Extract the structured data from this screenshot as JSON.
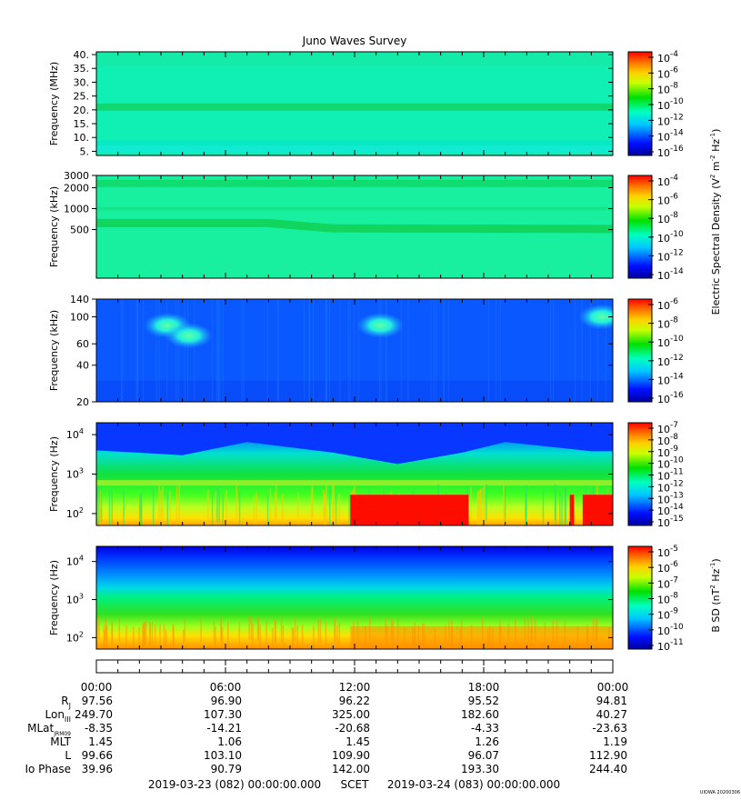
{
  "chart_data": {
    "type": "heatmap",
    "title": "Juno Waves Survey",
    "panels": [
      {
        "ylabel": "Frequency (MHz)",
        "y_ticks": [
          "40.",
          "35.",
          "30.",
          "25.",
          "20.",
          "15.",
          "10.",
          "5."
        ],
        "y_tick_values": [
          40,
          35,
          30,
          25,
          20,
          15,
          10,
          5
        ],
        "ylim": [
          3.5,
          41
        ],
        "scale": "linear",
        "colorbar_ticks": [
          "10",
          "10",
          "10",
          "10",
          "10",
          "10",
          "10"
        ],
        "colorbar_exponents": [
          "-4",
          "-6",
          "-8",
          "-10",
          "-12",
          "-14",
          "-16"
        ]
      },
      {
        "ylabel": "Frequency (kHz)",
        "y_ticks": [
          "3000",
          "2000",
          "1000",
          "500"
        ],
        "y_tick_values": [
          3000,
          2000,
          1000,
          500
        ],
        "ylim": [
          100,
          3000
        ],
        "scale": "log",
        "colorbar_ticks": [
          "10",
          "10",
          "10",
          "10",
          "10",
          "10"
        ],
        "colorbar_exponents": [
          "-4",
          "-6",
          "-8",
          "-10",
          "-12",
          "-14"
        ]
      },
      {
        "ylabel": "Frequency (kHz)",
        "y_ticks": [
          "140",
          "100",
          "60",
          "40",
          "20"
        ],
        "y_tick_values": [
          140,
          100,
          60,
          40,
          20
        ],
        "ylim": [
          20,
          140
        ],
        "scale": "log",
        "colorbar_ticks": [
          "10",
          "10",
          "10",
          "10",
          "10",
          "10"
        ],
        "colorbar_exponents": [
          "-6",
          "-8",
          "-10",
          "-12",
          "-14",
          "-16"
        ]
      },
      {
        "ylabel": "Frequency (Hz)",
        "y_ticks": [
          "10",
          "10",
          "10"
        ],
        "y_tick_exponents": [
          "4",
          "3",
          "2"
        ],
        "y_tick_values": [
          10000,
          1000,
          100
        ],
        "ylim": [
          50,
          20000
        ],
        "scale": "log",
        "colorbar_ticks": [
          "10",
          "10",
          "10",
          "10",
          "10",
          "10",
          "10",
          "10",
          "10"
        ],
        "colorbar_exponents": [
          "-7",
          "-8",
          "-9",
          "-10",
          "-11",
          "-12",
          "-13",
          "-14",
          "-15"
        ]
      },
      {
        "ylabel": "Frequency (Hz)",
        "y_ticks": [
          "10",
          "10",
          "10"
        ],
        "y_tick_exponents": [
          "4",
          "3",
          "2"
        ],
        "y_tick_values": [
          10000,
          1000,
          100
        ],
        "ylim": [
          50,
          25000
        ],
        "scale": "log",
        "colorbar_ticks": [
          "10",
          "10",
          "10",
          "10",
          "10",
          "10",
          "10"
        ],
        "colorbar_exponents": [
          "-5",
          "-6",
          "-7",
          "-8",
          "-9",
          "-10",
          "-11"
        ]
      }
    ],
    "colorbar_labels": {
      "electric": "Electric Spectral Density (V",
      "electric_tail_1": " m",
      "electric_tail_2": " Hz",
      "electric_close": ")",
      "magnetic": "B SD (nT",
      "magnetic_tail": " Hz",
      "magnetic_close": ")",
      "exp_2": "2",
      "exp_m2": "-2",
      "exp_m1": "-1"
    },
    "x_ticks": [
      "00:00",
      "06:00",
      "12:00",
      "18:00",
      "00:00"
    ],
    "x_tick_hours": [
      0,
      6,
      12,
      18,
      24
    ],
    "ephemeris": [
      {
        "label": "R",
        "sub": "J",
        "values": [
          "97.56",
          "96.90",
          "96.22",
          "95.52",
          "94.81"
        ]
      },
      {
        "label": "Lon",
        "sub": "III",
        "values": [
          "249.70",
          "107.30",
          "325.00",
          "182.60",
          "40.27"
        ]
      },
      {
        "label": "MLat",
        "sub": "JRM09",
        "values": [
          "-8.35",
          "-14.21",
          "-20.68",
          "-4.33",
          "-23.63"
        ]
      },
      {
        "label": "MLT",
        "sub": "",
        "values": [
          "1.45",
          "1.06",
          "1.45",
          "1.26",
          "1.19"
        ]
      },
      {
        "label": "L",
        "sub": "",
        "values": [
          "99.66",
          "103.10",
          "109.90",
          "96.07",
          "112.90"
        ]
      },
      {
        "label": "Io Phase",
        "sub": "",
        "values": [
          "39.96",
          "90.79",
          "142.00",
          "193.30",
          "244.40"
        ]
      }
    ],
    "footer": {
      "start": "2019-03-23 (082) 00:00:00.000",
      "scet": "SCET",
      "end": "2019-03-24 (083) 00:00:00.000"
    },
    "credit": "UIOWA 20200306",
    "features": {
      "p1_bands_mhz": [
        21,
        8
      ],
      "p2_band_khz": [
        [
          0,
          620
        ],
        [
          8,
          620
        ],
        [
          11,
          520
        ],
        [
          24,
          510
        ]
      ],
      "p2_bands_khz": [
        2300,
        1000
      ],
      "p3_blobs": [
        {
          "hour": 3.3,
          "freq": 85
        },
        {
          "hour": 4.3,
          "freq": 70
        },
        {
          "hour": 13.2,
          "freq": 85
        },
        {
          "hour": 23.5,
          "freq": 100
        }
      ],
      "p4_boundary_hz": [
        [
          0,
          4000
        ],
        [
          4,
          3000
        ],
        [
          7,
          6500
        ],
        [
          11,
          3500
        ],
        [
          14,
          1800
        ],
        [
          17,
          3500
        ],
        [
          19,
          6500
        ],
        [
          23,
          3800
        ],
        [
          24,
          3800
        ]
      ],
      "p4_red_intervals_h": [
        [
          11.8,
          17.3
        ],
        [
          22.0,
          22.2
        ],
        [
          22.6,
          24
        ]
      ],
      "p5_intense_from_hz": 200
    },
    "xlim": [
      0,
      24
    ],
    "grid": false
  }
}
